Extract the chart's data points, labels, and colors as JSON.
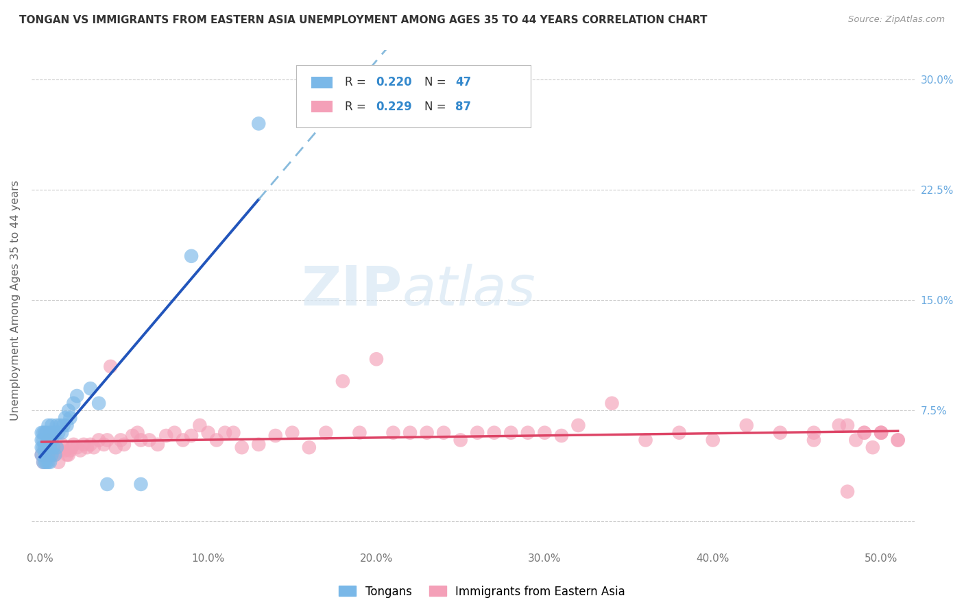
{
  "title": "TONGAN VS IMMIGRANTS FROM EASTERN ASIA UNEMPLOYMENT AMONG AGES 35 TO 44 YEARS CORRELATION CHART",
  "source": "Source: ZipAtlas.com",
  "xlabel_ticks": [
    0.0,
    0.1,
    0.2,
    0.3,
    0.4,
    0.5
  ],
  "xlabel_labels": [
    "0.0%",
    "10.0%",
    "20.0%",
    "30.0%",
    "40.0%",
    "50.0%"
  ],
  "ylabel_ticks_right": [
    0.075,
    0.15,
    0.225,
    0.3
  ],
  "ylabel_labels_right": [
    "7.5%",
    "15.0%",
    "22.5%",
    "30.0%"
  ],
  "ylabel_label": "Unemployment Among Ages 35 to 44 years",
  "xlim": [
    -0.005,
    0.52
  ],
  "ylim": [
    -0.02,
    0.32
  ],
  "tongans_color": "#7ab8e8",
  "immigrants_color": "#f4a0b8",
  "regression_tongan_solid_color": "#2255bb",
  "regression_tongan_dashed_color": "#88bbdd",
  "regression_immigrant_color": "#dd4466",
  "watermark_zip": "ZIP",
  "watermark_atlas": "atlas",
  "tongans_x": [
    0.001,
    0.001,
    0.001,
    0.001,
    0.002,
    0.002,
    0.002,
    0.002,
    0.003,
    0.003,
    0.003,
    0.003,
    0.004,
    0.004,
    0.004,
    0.005,
    0.005,
    0.005,
    0.005,
    0.006,
    0.006,
    0.006,
    0.007,
    0.007,
    0.007,
    0.008,
    0.008,
    0.009,
    0.009,
    0.01,
    0.01,
    0.011,
    0.012,
    0.013,
    0.014,
    0.015,
    0.016,
    0.017,
    0.018,
    0.02,
    0.022,
    0.03,
    0.035,
    0.04,
    0.06,
    0.09,
    0.13
  ],
  "tongans_y": [
    0.045,
    0.05,
    0.055,
    0.06,
    0.04,
    0.05,
    0.055,
    0.06,
    0.04,
    0.045,
    0.05,
    0.06,
    0.04,
    0.05,
    0.06,
    0.04,
    0.045,
    0.055,
    0.065,
    0.04,
    0.05,
    0.06,
    0.045,
    0.055,
    0.065,
    0.05,
    0.06,
    0.045,
    0.06,
    0.05,
    0.065,
    0.06,
    0.065,
    0.06,
    0.065,
    0.07,
    0.065,
    0.075,
    0.07,
    0.08,
    0.085,
    0.09,
    0.08,
    0.025,
    0.025,
    0.18,
    0.27
  ],
  "immigrants_x": [
    0.001,
    0.002,
    0.003,
    0.004,
    0.005,
    0.006,
    0.007,
    0.008,
    0.009,
    0.01,
    0.011,
    0.012,
    0.013,
    0.015,
    0.016,
    0.017,
    0.018,
    0.019,
    0.02,
    0.022,
    0.024,
    0.026,
    0.028,
    0.03,
    0.032,
    0.035,
    0.038,
    0.04,
    0.042,
    0.045,
    0.048,
    0.05,
    0.055,
    0.058,
    0.06,
    0.065,
    0.07,
    0.075,
    0.08,
    0.085,
    0.09,
    0.095,
    0.1,
    0.105,
    0.11,
    0.115,
    0.12,
    0.13,
    0.14,
    0.15,
    0.16,
    0.17,
    0.18,
    0.19,
    0.2,
    0.21,
    0.22,
    0.23,
    0.24,
    0.25,
    0.26,
    0.27,
    0.28,
    0.29,
    0.3,
    0.31,
    0.32,
    0.34,
    0.36,
    0.38,
    0.4,
    0.42,
    0.44,
    0.46,
    0.48,
    0.49,
    0.5,
    0.51,
    0.48,
    0.5,
    0.46,
    0.49,
    0.5,
    0.51,
    0.475,
    0.485,
    0.495
  ],
  "immigrants_y": [
    0.045,
    0.04,
    0.05,
    0.045,
    0.055,
    0.045,
    0.05,
    0.045,
    0.045,
    0.05,
    0.04,
    0.048,
    0.052,
    0.048,
    0.045,
    0.045,
    0.048,
    0.05,
    0.052,
    0.05,
    0.048,
    0.052,
    0.05,
    0.052,
    0.05,
    0.055,
    0.052,
    0.055,
    0.105,
    0.05,
    0.055,
    0.052,
    0.058,
    0.06,
    0.055,
    0.055,
    0.052,
    0.058,
    0.06,
    0.055,
    0.058,
    0.065,
    0.06,
    0.055,
    0.06,
    0.06,
    0.05,
    0.052,
    0.058,
    0.06,
    0.05,
    0.06,
    0.095,
    0.06,
    0.11,
    0.06,
    0.06,
    0.06,
    0.06,
    0.055,
    0.06,
    0.06,
    0.06,
    0.06,
    0.06,
    0.058,
    0.065,
    0.08,
    0.055,
    0.06,
    0.055,
    0.065,
    0.06,
    0.06,
    0.065,
    0.06,
    0.06,
    0.055,
    0.02,
    0.06,
    0.055,
    0.06,
    0.06,
    0.055,
    0.065,
    0.055,
    0.05
  ]
}
